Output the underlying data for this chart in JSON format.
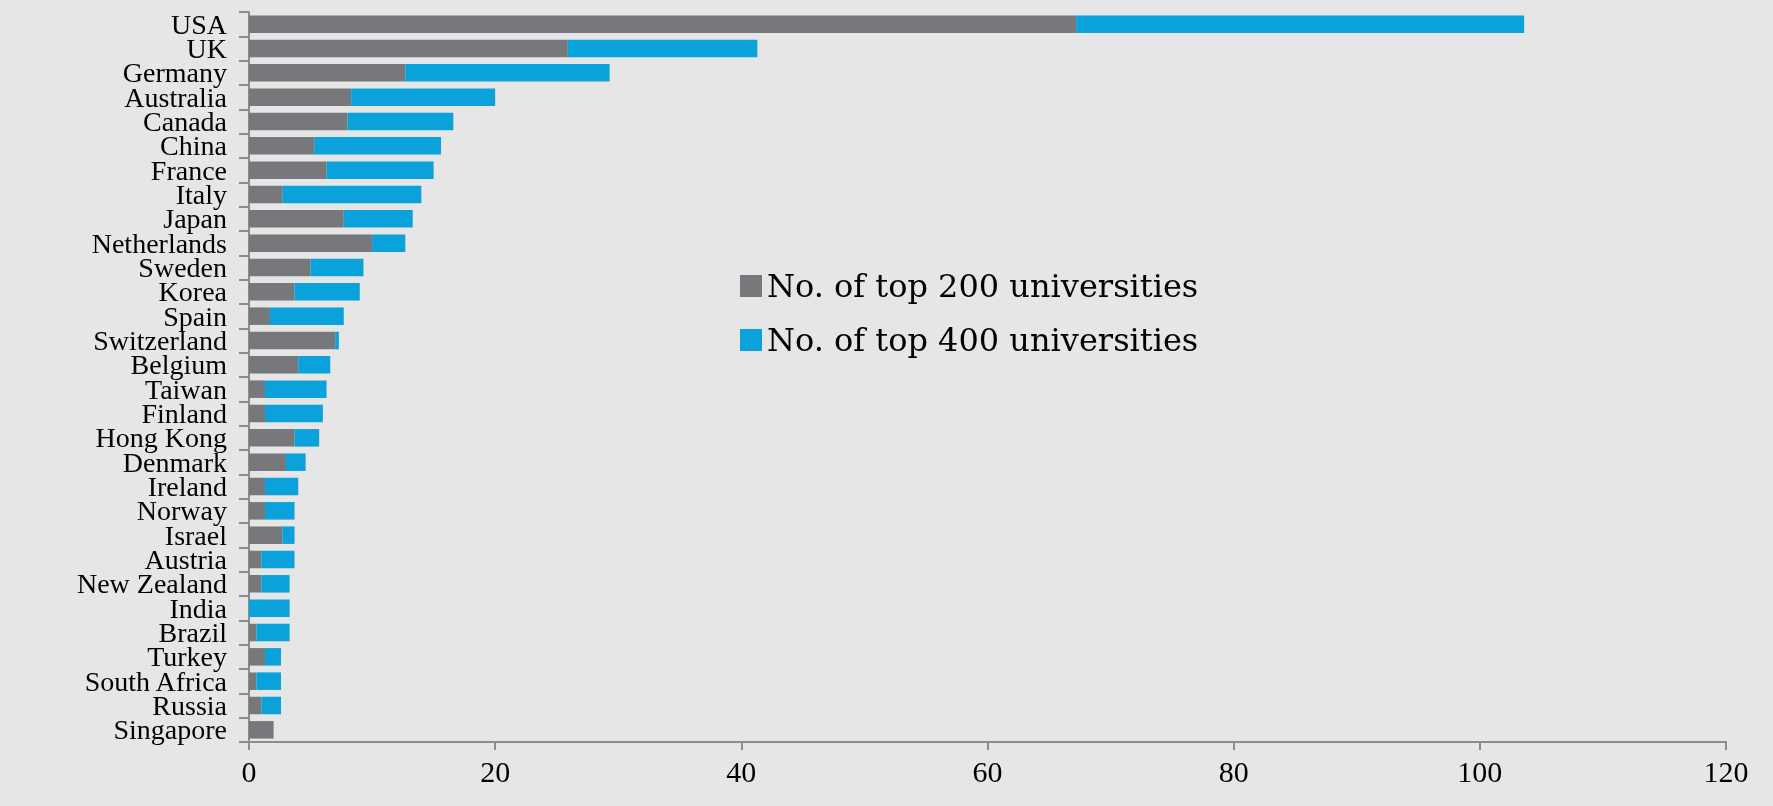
{
  "chart_data": {
    "type": "bar",
    "orientation": "horizontal",
    "stacked": true,
    "categories": [
      "USA",
      "UK",
      "Germany",
      "Australia",
      "Canada",
      "China",
      "France",
      "Italy",
      "Japan",
      "Netherlands",
      "Sweden",
      "Korea",
      "Spain",
      "Switzerland",
      "Belgium",
      "Taiwan",
      "Finland",
      "Hong Kong",
      "Denmark",
      "Ireland",
      "Norway",
      "Israel",
      "Austria",
      "New Zealand",
      "India",
      "Brazil",
      "Turkey",
      "South Africa",
      "Russia",
      "Singapore"
    ],
    "series": [
      {
        "name": "No. of top 200 universities",
        "color": "#77787b",
        "values": [
          67.2,
          25.9,
          12.7,
          8.3,
          8.0,
          5.3,
          6.3,
          2.7,
          7.7,
          10.0,
          5.0,
          3.7,
          1.7,
          7.0,
          4.0,
          1.3,
          1.3,
          3.7,
          3.0,
          1.3,
          1.3,
          2.7,
          1.0,
          1.0,
          0,
          0.6,
          1.3,
          0.6,
          1.0,
          2.0
        ]
      },
      {
        "name": "No. of top 400 universities",
        "color": "#0ba1da",
        "values": [
          36.4,
          15.4,
          16.6,
          11.7,
          8.6,
          10.3,
          8.7,
          11.3,
          5.6,
          2.7,
          4.3,
          5.3,
          6.0,
          0.3,
          2.6,
          5.0,
          4.7,
          2.0,
          1.6,
          2.7,
          2.4,
          1.0,
          2.7,
          2.3,
          3.3,
          2.7,
          1.3,
          2.0,
          1.6,
          0
        ]
      }
    ],
    "xlim": [
      0,
      120
    ],
    "xticks": [
      0,
      20,
      40,
      60,
      80,
      100,
      120
    ],
    "grid": false,
    "legend": "right"
  }
}
